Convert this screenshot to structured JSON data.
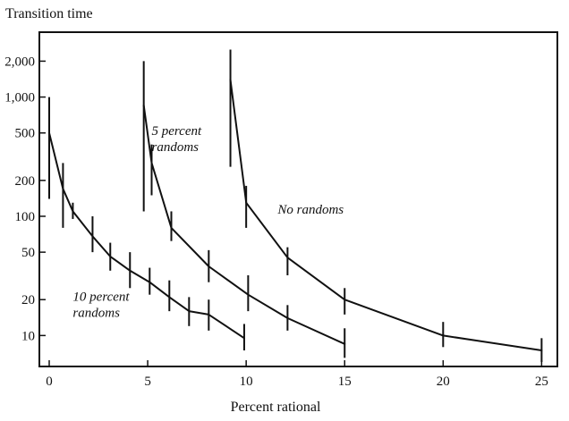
{
  "chart_data": {
    "type": "line",
    "ylabel": "Transition time",
    "xlabel": "Percent rational",
    "y_scale": "log",
    "xlim": [
      -0.5,
      25.8
    ],
    "ylim": [
      5.5,
      3500
    ],
    "x_ticks": [
      0,
      5,
      10,
      15,
      20,
      25
    ],
    "x_tick_labels": [
      "0",
      "5",
      "10",
      "15",
      "20",
      "25"
    ],
    "y_ticks": [
      10,
      20,
      50,
      100,
      200,
      500,
      1000,
      2000
    ],
    "y_tick_labels": [
      "10",
      "20",
      "50",
      "100",
      "200",
      "500",
      "1,000",
      "2,000"
    ],
    "grid": false,
    "series": [
      {
        "name": "10 percent randoms",
        "points": [
          {
            "x": 0,
            "y": 500,
            "lo": 140,
            "hi": 1000
          },
          {
            "x": 0.7,
            "y": 170,
            "lo": 80,
            "hi": 280
          },
          {
            "x": 1.2,
            "y": 110,
            "lo": 95,
            "hi": 130
          },
          {
            "x": 2.2,
            "y": 68,
            "lo": 50,
            "hi": 100
          },
          {
            "x": 3.1,
            "y": 46,
            "lo": 35,
            "hi": 60
          },
          {
            "x": 4.1,
            "y": 35,
            "lo": 25,
            "hi": 50
          },
          {
            "x": 5.1,
            "y": 28,
            "lo": 22,
            "hi": 37
          },
          {
            "x": 6.1,
            "y": 21,
            "lo": 16,
            "hi": 29
          },
          {
            "x": 7.1,
            "y": 16,
            "lo": 12,
            "hi": 21
          },
          {
            "x": 8.1,
            "y": 15,
            "lo": 11,
            "hi": 20
          },
          {
            "x": 9.9,
            "y": 9.5,
            "lo": 7.5,
            "hi": 12.5
          }
        ]
      },
      {
        "name": "5 percent randoms",
        "points": [
          {
            "x": 4.8,
            "y": 850,
            "lo": 110,
            "hi": 2000
          },
          {
            "x": 5.2,
            "y": 280,
            "lo": 150,
            "hi": 400
          },
          {
            "x": 6.2,
            "y": 80,
            "lo": 62,
            "hi": 110
          },
          {
            "x": 8.1,
            "y": 38,
            "lo": 28,
            "hi": 52
          },
          {
            "x": 10.1,
            "y": 22,
            "lo": 16,
            "hi": 32
          },
          {
            "x": 12.1,
            "y": 14,
            "lo": 11,
            "hi": 18
          },
          {
            "x": 15.0,
            "y": 8.5,
            "lo": 6.5,
            "hi": 11.5
          }
        ]
      },
      {
        "name": "No randoms",
        "points": [
          {
            "x": 9.2,
            "y": 1400,
            "lo": 260,
            "hi": 2500
          },
          {
            "x": 10.0,
            "y": 130,
            "lo": 80,
            "hi": 180
          },
          {
            "x": 12.1,
            "y": 45,
            "lo": 32,
            "hi": 55
          },
          {
            "x": 15.0,
            "y": 20,
            "lo": 15,
            "hi": 25
          },
          {
            "x": 20.0,
            "y": 10,
            "lo": 8,
            "hi": 13
          },
          {
            "x": 25.0,
            "y": 7.5,
            "lo": 6,
            "hi": 9.5
          }
        ]
      }
    ],
    "annotations": [
      {
        "series": "10 percent randoms",
        "lines": [
          "10 percent",
          "randoms"
        ]
      },
      {
        "series": "5 percent randoms",
        "lines": [
          "5 percent",
          "randoms"
        ]
      },
      {
        "series": "No randoms",
        "lines": [
          "No randoms"
        ]
      }
    ]
  }
}
